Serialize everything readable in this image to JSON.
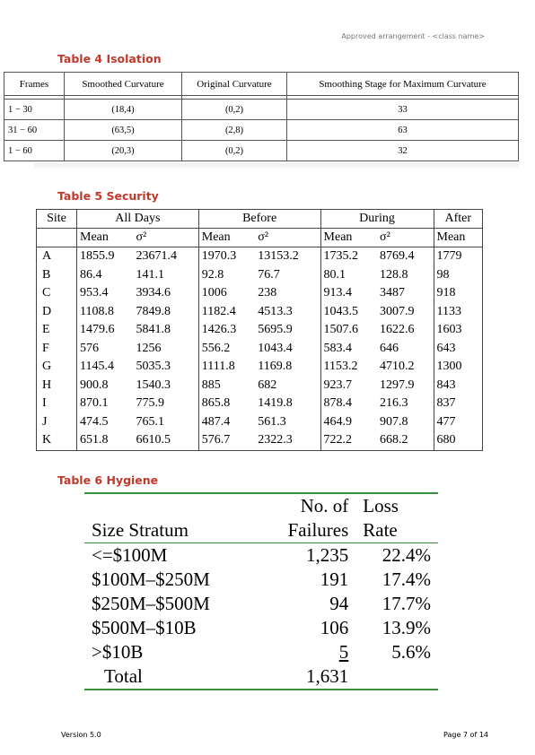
{
  "header": {
    "note": "Approved arrangement - <class name>"
  },
  "table4": {
    "caption": "Table 4 Isolation",
    "headers": [
      "Frames",
      "Smoothed Curvature",
      "Original Curvature",
      "Smoothing Stage for Maximum Curvature"
    ],
    "rows": [
      [
        "1 − 30",
        "(18,4)",
        "(0,2)",
        "33"
      ],
      [
        "31 − 60",
        "(63,5)",
        "(2,8)",
        "63"
      ],
      [
        "1 − 60",
        "(20,3)",
        "(0,2)",
        "32"
      ]
    ]
  },
  "table5": {
    "caption": "Table 5 Security",
    "group_headers": [
      "Site",
      "All Days",
      "Before",
      "During",
      "After"
    ],
    "sub_headers": [
      "Mean",
      "σ²",
      "Mean",
      "σ²",
      "Mean",
      "σ²",
      "Mean"
    ],
    "rows": [
      [
        "A",
        "1855.9",
        "23671.4",
        "1970.3",
        "13153.2",
        "1735.2",
        "8769.4",
        "1779"
      ],
      [
        "B",
        "86.4",
        "141.1",
        "92.8",
        "76.7",
        "80.1",
        "128.8",
        "98"
      ],
      [
        "C",
        "953.4",
        "3934.6",
        "1006",
        "238",
        "913.4",
        "3487",
        "918"
      ],
      [
        "D",
        "1108.8",
        "7849.8",
        "1182.4",
        "4513.3",
        "1043.5",
        "3007.9",
        "1133"
      ],
      [
        "E",
        "1479.6",
        "5841.8",
        "1426.3",
        "5695.9",
        "1507.6",
        "1622.6",
        "1603"
      ],
      [
        "F",
        "576",
        "1256",
        "556.2",
        "1043.4",
        "583.4",
        "646",
        "643"
      ],
      [
        "G",
        "1145.4",
        "5035.3",
        "1111.8",
        "1169.8",
        "1153.2",
        "4710.2",
        "1300"
      ],
      [
        "H",
        "900.8",
        "1540.3",
        "885",
        "682",
        "923.7",
        "1297.9",
        "843"
      ],
      [
        "I",
        "870.1",
        "775.9",
        "865.8",
        "1419.8",
        "878.4",
        "216.3",
        "837"
      ],
      [
        "J",
        "474.5",
        "765.1",
        "487.4",
        "561.3",
        "464.9",
        "907.8",
        "477"
      ],
      [
        "K",
        "651.8",
        "6610.5",
        "576.7",
        "2322.3",
        "722.2",
        "668.2",
        "680"
      ]
    ]
  },
  "table6": {
    "caption": "Table 6 Hygiene",
    "header_top": [
      "",
      "No. of",
      "Loss"
    ],
    "header_bottom": [
      "Size Stratum",
      "Failures",
      "Rate"
    ],
    "rows": [
      [
        "<=$100M",
        "1,235",
        "22.4%"
      ],
      [
        "$100M–$250M",
        "191",
        "17.4%"
      ],
      [
        "$250M–$500M",
        "94",
        "17.7%"
      ],
      [
        "$500M–$10B",
        "106",
        "13.9%"
      ],
      [
        ">$10B",
        "5",
        "5.6%"
      ]
    ],
    "total": [
      "Total",
      "1,631",
      ""
    ]
  },
  "footer": {
    "version": "Version 5.0",
    "page": "Page 7 of 14"
  }
}
